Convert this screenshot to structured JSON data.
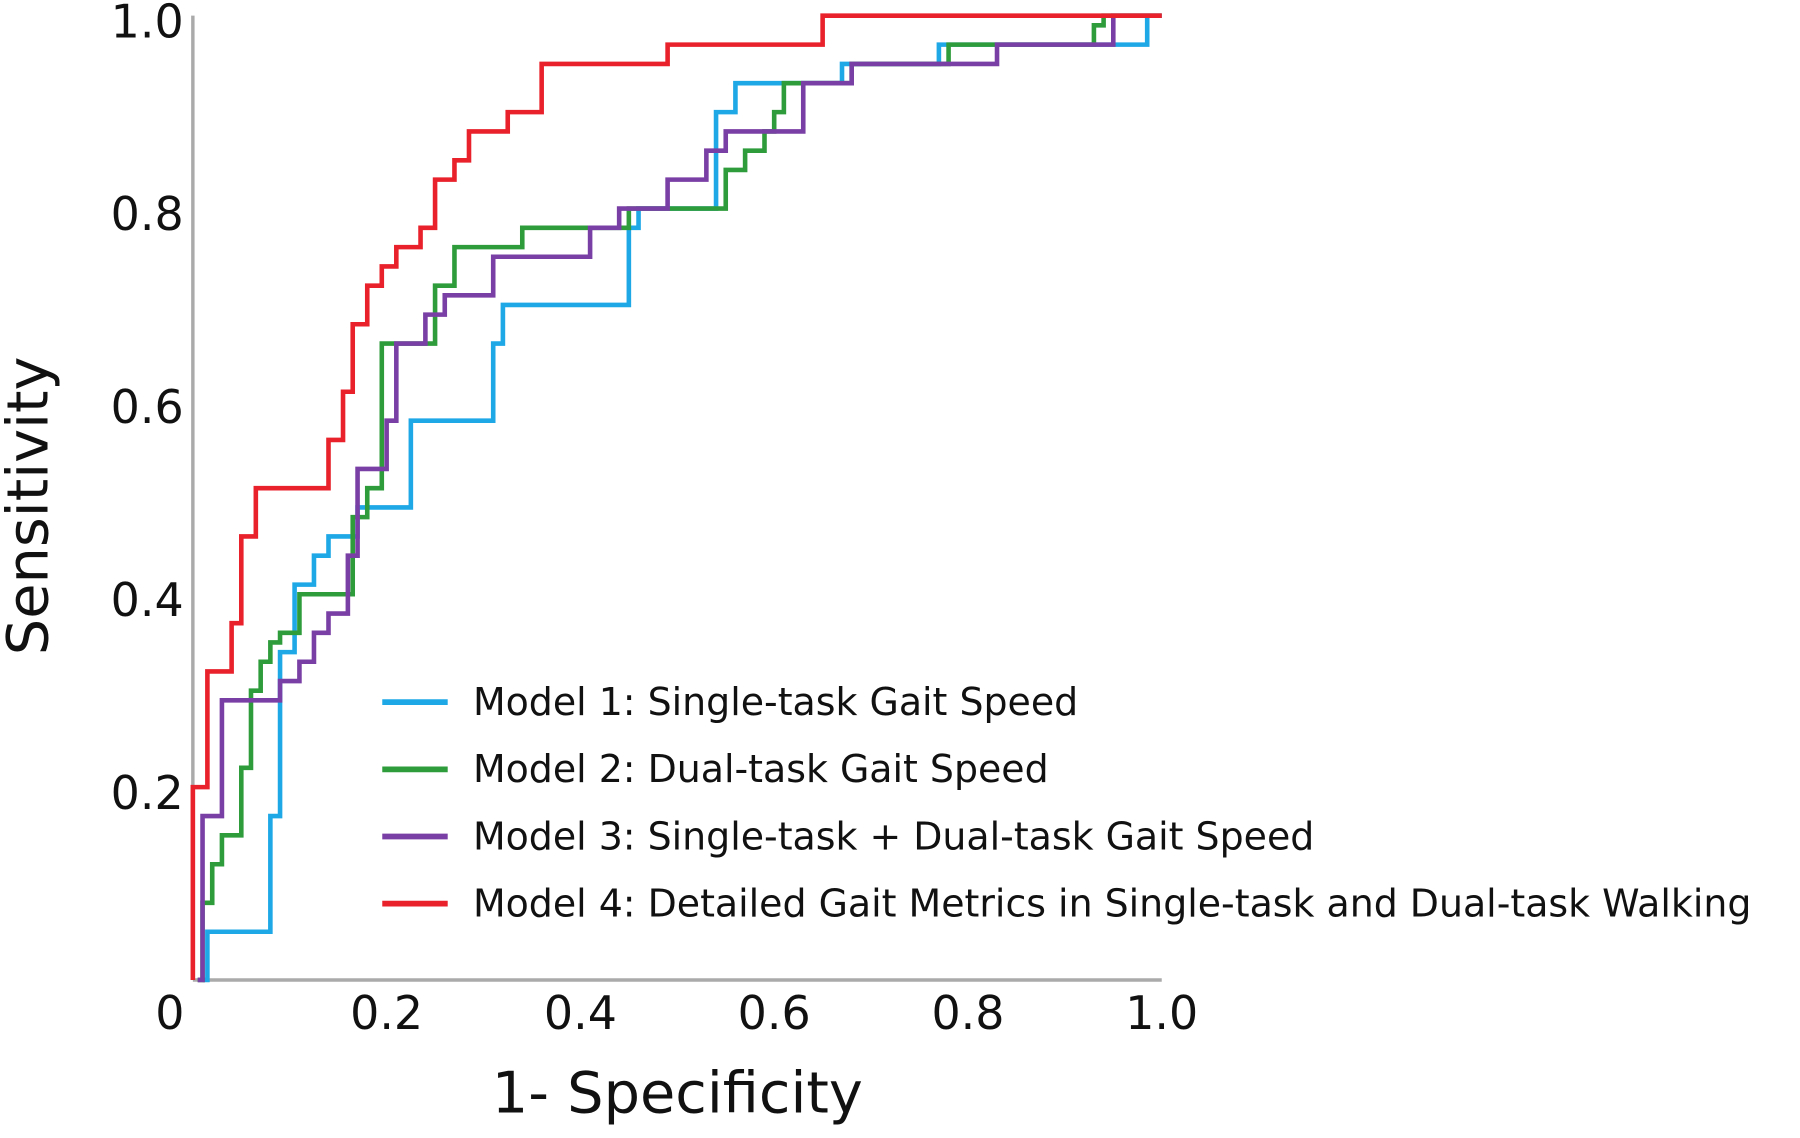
{
  "chart_data": {
    "type": "line",
    "step": true,
    "x_label": "1- Specificity",
    "y_label": "Sensitivity",
    "xlim": [
      0,
      1
    ],
    "ylim": [
      0,
      1
    ],
    "xticks": [
      0,
      0.2,
      0.4,
      0.6,
      0.8,
      {
        "value": 1,
        "label": "1.0"
      }
    ],
    "yticks": [
      0.2,
      0.4,
      0.6,
      0.8,
      {
        "value": 1,
        "label": "1.0"
      }
    ],
    "legend": "lower right",
    "series": [
      {
        "name": "Model 1: Single-task Gait Speed",
        "color": "#1ea8e6",
        "x": [
          0.01,
          0.015,
          0.08,
          0.09,
          0.105,
          0.125,
          0.14,
          0.17,
          0.225,
          0.31,
          0.32,
          0.45,
          0.46,
          0.54,
          0.56,
          0.67,
          0.77,
          0.985
        ],
        "values": [
          0,
          0.05,
          0.17,
          0.34,
          0.41,
          0.44,
          0.46,
          0.49,
          0.58,
          0.66,
          0.7,
          0.78,
          0.8,
          0.9,
          0.93,
          0.95,
          0.97,
          1.0
        ]
      },
      {
        "name": "Model 2: Dual-task Gait Speed",
        "color": "#2f9c3c",
        "x": [
          0.005,
          0.01,
          0.02,
          0.03,
          0.05,
          0.06,
          0.07,
          0.08,
          0.09,
          0.11,
          0.165,
          0.18,
          0.195,
          0.25,
          0.27,
          0.34,
          0.45,
          0.55,
          0.57,
          0.59,
          0.6,
          0.61,
          0.68,
          0.78,
          0.93,
          0.94,
          1
        ],
        "values": [
          0,
          0.08,
          0.12,
          0.15,
          0.22,
          0.3,
          0.33,
          0.35,
          0.36,
          0.4,
          0.48,
          0.51,
          0.66,
          0.72,
          0.76,
          0.78,
          0.8,
          0.84,
          0.86,
          0.88,
          0.9,
          0.93,
          0.95,
          0.97,
          0.99,
          1.0,
          1
        ]
      },
      {
        "name": "Model 3: Single-task + Dual-task Gait Speed",
        "color": "#7a3fa5",
        "x": [
          0.005,
          0.01,
          0.03,
          0.09,
          0.11,
          0.125,
          0.14,
          0.16,
          0.17,
          0.2,
          0.21,
          0.24,
          0.26,
          0.31,
          0.41,
          0.44,
          0.49,
          0.53,
          0.55,
          0.63,
          0.68,
          0.83,
          0.95,
          1
        ],
        "values": [
          0,
          0.17,
          0.29,
          0.31,
          0.33,
          0.36,
          0.38,
          0.44,
          0.53,
          0.58,
          0.66,
          0.69,
          0.71,
          0.75,
          0.78,
          0.8,
          0.83,
          0.86,
          0.88,
          0.93,
          0.95,
          0.97,
          1.0,
          1
        ]
      },
      {
        "name": "Model 4: Detailed Gait Metrics in Single-task and Dual-task Walking",
        "color": "#e8212b",
        "x": [
          0,
          0,
          0.015,
          0.04,
          0.05,
          0.065,
          0.14,
          0.155,
          0.165,
          0.18,
          0.195,
          0.21,
          0.235,
          0.25,
          0.27,
          0.285,
          0.325,
          0.36,
          0.49,
          0.65,
          1
        ],
        "values": [
          0,
          0.2,
          0.32,
          0.37,
          0.46,
          0.51,
          0.56,
          0.61,
          0.68,
          0.72,
          0.74,
          0.76,
          0.78,
          0.83,
          0.85,
          0.88,
          0.9,
          0.95,
          0.97,
          1.0,
          1
        ]
      }
    ]
  }
}
